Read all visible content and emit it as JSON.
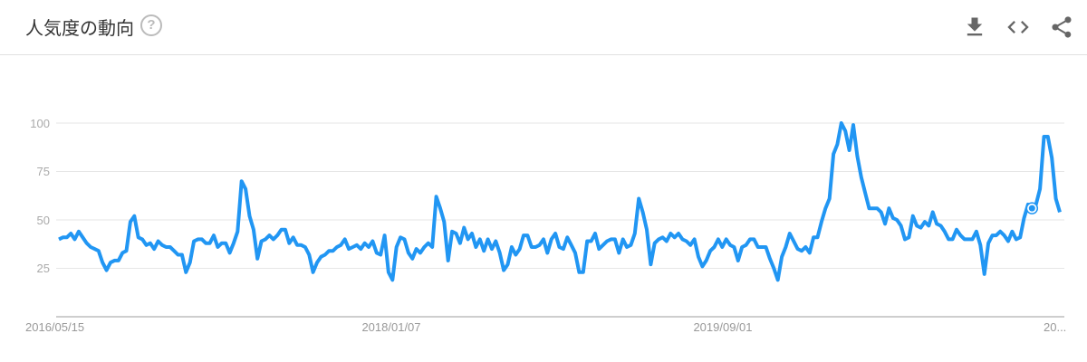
{
  "header": {
    "title": "人気度の動向",
    "help_icon": "help-circle-icon",
    "help_label": "?",
    "actions": [
      {
        "name": "download-button",
        "icon": "download-icon"
      },
      {
        "name": "embed-button",
        "icon": "code-icon"
      },
      {
        "name": "share-button",
        "icon": "share-icon"
      }
    ]
  },
  "colors": {
    "line": "#2196f3",
    "grid": "#e6e6e6",
    "axis": "#bdbdbd"
  },
  "chart_data": {
    "type": "line",
    "title": "人気度の動向",
    "xlabel": "",
    "ylabel": "",
    "ylim": [
      0,
      100
    ],
    "grid": true,
    "y_ticks": [
      "100",
      "75",
      "50",
      "25"
    ],
    "x_ticks": [
      "2016/05/15",
      "2018/01/07",
      "2019/09/01",
      "20..."
    ],
    "frequency": "weekly",
    "highlighted_point_index": 245,
    "values": [
      40,
      41,
      41,
      43,
      40,
      44,
      41,
      38,
      36,
      35,
      34,
      28,
      24,
      28,
      29,
      29,
      33,
      34,
      49,
      52,
      41,
      40,
      37,
      38,
      35,
      39,
      37,
      36,
      36,
      34,
      32,
      32,
      23,
      28,
      39,
      40,
      40,
      38,
      38,
      42,
      36,
      38,
      38,
      33,
      38,
      44,
      70,
      66,
      52,
      45,
      30,
      39,
      40,
      42,
      40,
      42,
      45,
      45,
      38,
      41,
      37,
      37,
      36,
      32,
      23,
      28,
      31,
      32,
      34,
      34,
      36,
      37,
      40,
      35,
      36,
      37,
      35,
      38,
      36,
      39,
      33,
      32,
      42,
      23,
      19,
      36,
      41,
      40,
      33,
      30,
      35,
      33,
      36,
      38,
      36,
      62,
      56,
      49,
      29,
      44,
      43,
      38,
      46,
      40,
      43,
      36,
      40,
      34,
      40,
      35,
      39,
      33,
      24,
      27,
      36,
      32,
      35,
      42,
      42,
      36,
      36,
      37,
      40,
      33,
      40,
      43,
      36,
      35,
      41,
      37,
      33,
      23,
      23,
      39,
      39,
      43,
      35,
      37,
      39,
      40,
      40,
      33,
      40,
      36,
      37,
      43,
      61,
      54,
      45,
      27,
      38,
      40,
      41,
      39,
      43,
      41,
      43,
      40,
      39,
      37,
      40,
      31,
      26,
      29,
      34,
      36,
      40,
      36,
      40,
      37,
      36,
      29,
      36,
      37,
      40,
      40,
      36,
      36,
      36,
      30,
      25,
      19,
      31,
      36,
      43,
      39,
      35,
      34,
      36,
      33,
      41,
      41,
      49,
      56,
      61,
      84,
      89,
      100,
      96,
      86,
      99,
      83,
      72,
      64,
      56,
      56,
      56,
      54,
      48,
      56,
      51,
      50,
      47,
      40,
      41,
      52,
      47,
      46,
      49,
      47,
      54,
      48,
      47,
      44,
      40,
      40,
      45,
      42,
      40,
      40,
      40,
      44,
      37,
      22,
      38,
      42,
      42,
      44,
      42,
      39,
      44,
      40,
      41,
      51,
      58,
      56,
      58,
      66,
      93,
      93,
      82,
      61,
      54
    ]
  }
}
